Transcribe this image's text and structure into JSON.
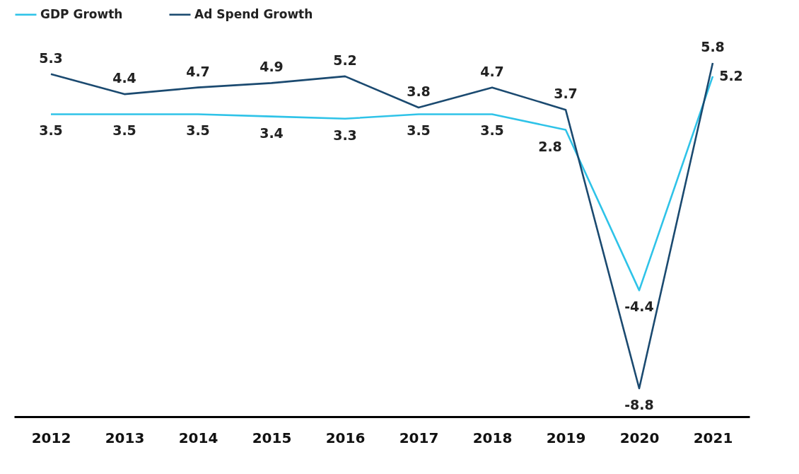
{
  "chart_data": {
    "type": "line",
    "categories": [
      "2012",
      "2013",
      "2014",
      "2015",
      "2016",
      "2017",
      "2018",
      "2019",
      "2020",
      "2021"
    ],
    "series": [
      {
        "name": "GDP Growth",
        "color": "#2fc3e8",
        "values": [
          3.5,
          3.5,
          3.5,
          3.4,
          3.3,
          3.5,
          3.5,
          2.8,
          -4.4,
          5.2
        ]
      },
      {
        "name": "Ad Spend Growth",
        "color": "#1b4a70",
        "values": [
          5.3,
          4.4,
          4.7,
          4.9,
          5.2,
          3.8,
          4.7,
          3.7,
          -8.8,
          5.8
        ]
      }
    ],
    "data_labels": true,
    "legend": "top left",
    "grid": false,
    "line_style": "solid"
  }
}
